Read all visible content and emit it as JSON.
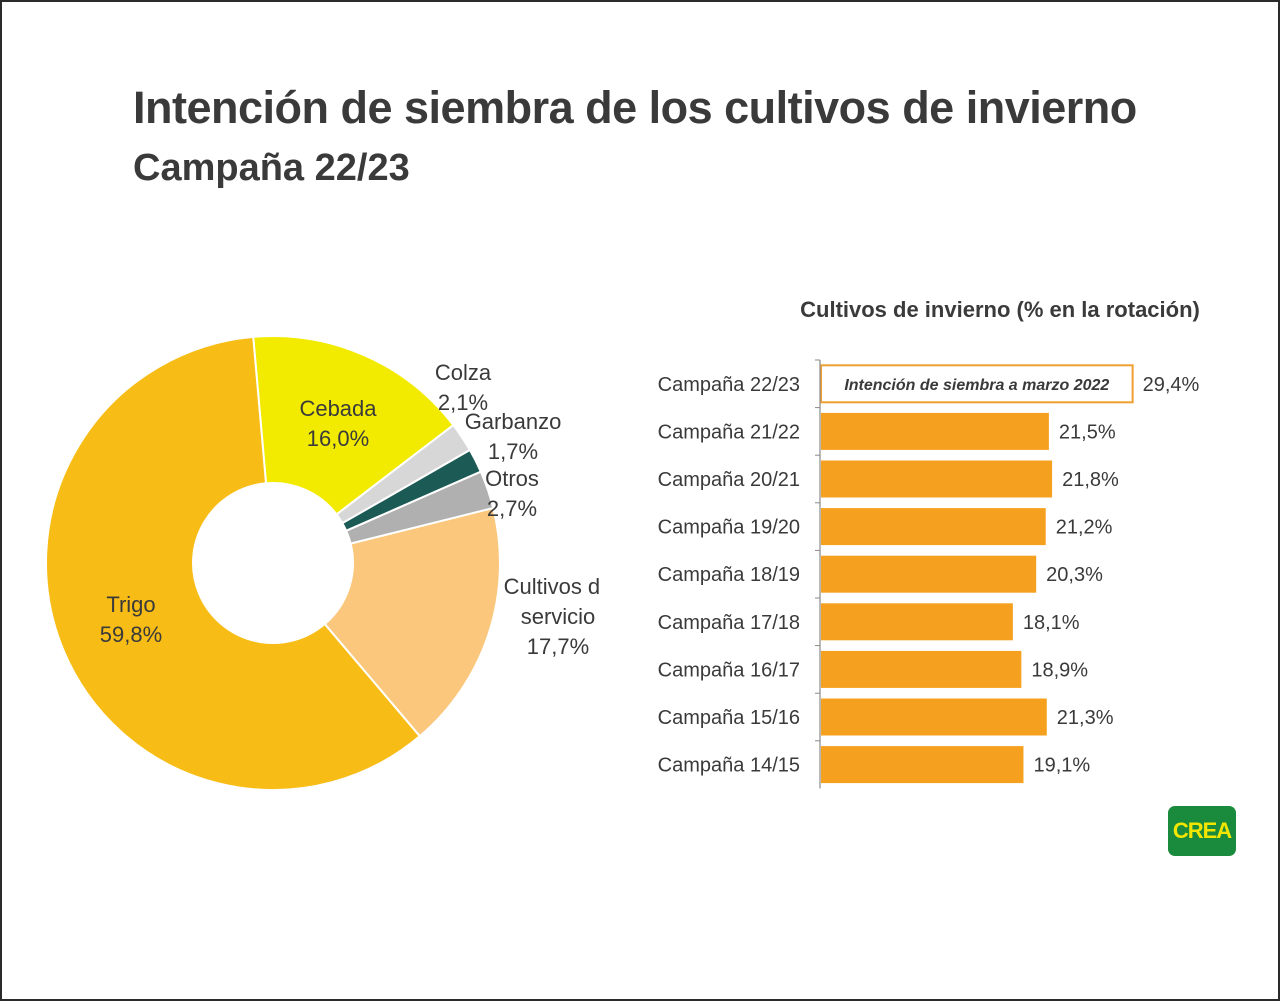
{
  "header": {
    "title": "Intención de siembra de los cultivos de invierno",
    "subtitle": "Campaña 22/23"
  },
  "logo": {
    "text": "CREA"
  },
  "colors": {
    "trigo": "#f7bd16",
    "cebada": "#f2eb00",
    "colza": "#d7d7d7",
    "garbanzo": "#1c5a55",
    "otros": "#b0b0b0",
    "servicio": "#fbc77d",
    "bar": "#f5a11f",
    "highlight_border": "#f0a030",
    "highlight_text": "#e8891a",
    "text": "#3a3a3a",
    "logo_bg": "#1a8a3c",
    "logo_text": "#f2e600"
  },
  "chart_data": [
    {
      "type": "pie",
      "donut": true,
      "slices": [
        {
          "key": "cebada",
          "name": "Cebada",
          "value": 16.0,
          "value_label": "16,0%"
        },
        {
          "key": "colza",
          "name": "Colza",
          "value": 2.1,
          "value_label": "2,1%"
        },
        {
          "key": "garbanzo",
          "name": "Garbanzo",
          "value": 1.7,
          "value_label": "1,7%"
        },
        {
          "key": "otros",
          "name": "Otros",
          "value": 2.7,
          "value_label": "2,7%"
        },
        {
          "key": "servicio",
          "name": "Cultivos de servicio",
          "name_lines": [
            "Cultivos de",
            "servicio"
          ],
          "value": 17.7,
          "value_label": "17,7%"
        },
        {
          "key": "trigo",
          "name": "Trigo",
          "value": 59.8,
          "value_label": "59,8%"
        }
      ]
    },
    {
      "type": "bar",
      "orientation": "horizontal",
      "title": "Cultivos de invierno (% en la rotación)",
      "categories": [
        "Campaña 22/23",
        "Campaña 21/22",
        "Campaña 20/21",
        "Campaña 19/20",
        "Campaña 18/19",
        "Campaña 17/18",
        "Campaña 16/17",
        "Campaña 15/16",
        "Campaña 14/15"
      ],
      "values": [
        29.4,
        21.5,
        21.8,
        21.2,
        20.3,
        18.1,
        18.9,
        21.3,
        19.1
      ],
      "value_labels": [
        "29,4%",
        "21,5%",
        "21,8%",
        "21,2%",
        "20,3%",
        "18,1%",
        "18,9%",
        "21,3%",
        "19,1%"
      ],
      "highlight": {
        "index": 0,
        "text": "Intención de siembra a marzo 2022"
      },
      "xlim": [
        0,
        30
      ]
    }
  ]
}
